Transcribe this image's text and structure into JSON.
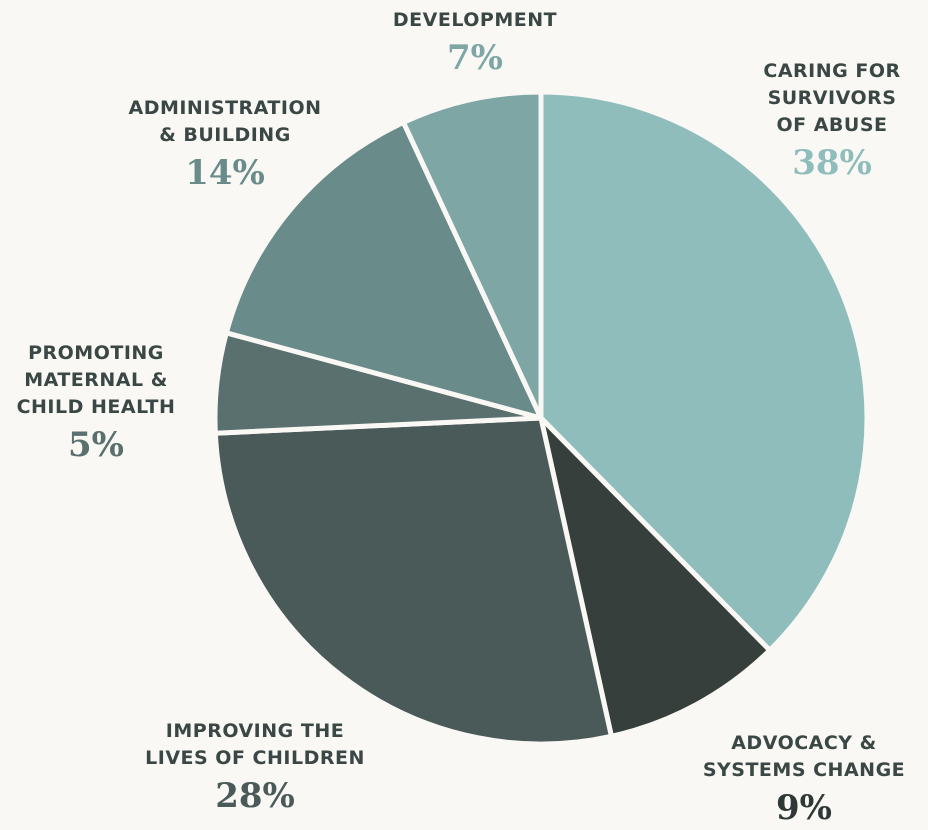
{
  "chart_data": {
    "type": "pie",
    "start_angle": "12 o'clock",
    "direction": "clockwise",
    "slices": [
      {
        "label": "CARING FOR\nSURVIVORS\nOF ABUSE",
        "value": 38,
        "value_label": "38%",
        "color": "#8fbdbb",
        "text_color": "#8fbdbb"
      },
      {
        "label": "ADVOCACY &\nSYSTEMS CHANGE",
        "value": 9,
        "value_label": "9%",
        "color": "#373f3d",
        "text_color": "#2f3836"
      },
      {
        "label": "IMPROVING THE\nLIVES OF CHILDREN",
        "value": 28,
        "value_label": "28%",
        "color": "#4a5a59",
        "text_color": "#4a5a59"
      },
      {
        "label": "PROMOTING\nMATERNAL &\nCHILD HEALTH",
        "value": 5,
        "value_label": "5%",
        "color": "#5a706e",
        "text_color": "#5a706e"
      },
      {
        "label": "ADMINISTRATION\n& BUILDING",
        "value": 14,
        "value_label": "14%",
        "color": "#698b8a",
        "text_color": "#698b8a"
      },
      {
        "label": "DEVELOPMENT",
        "value": 7,
        "value_label": "7%",
        "color": "#7ea6a5",
        "text_color": "#7ea6a5"
      }
    ]
  }
}
